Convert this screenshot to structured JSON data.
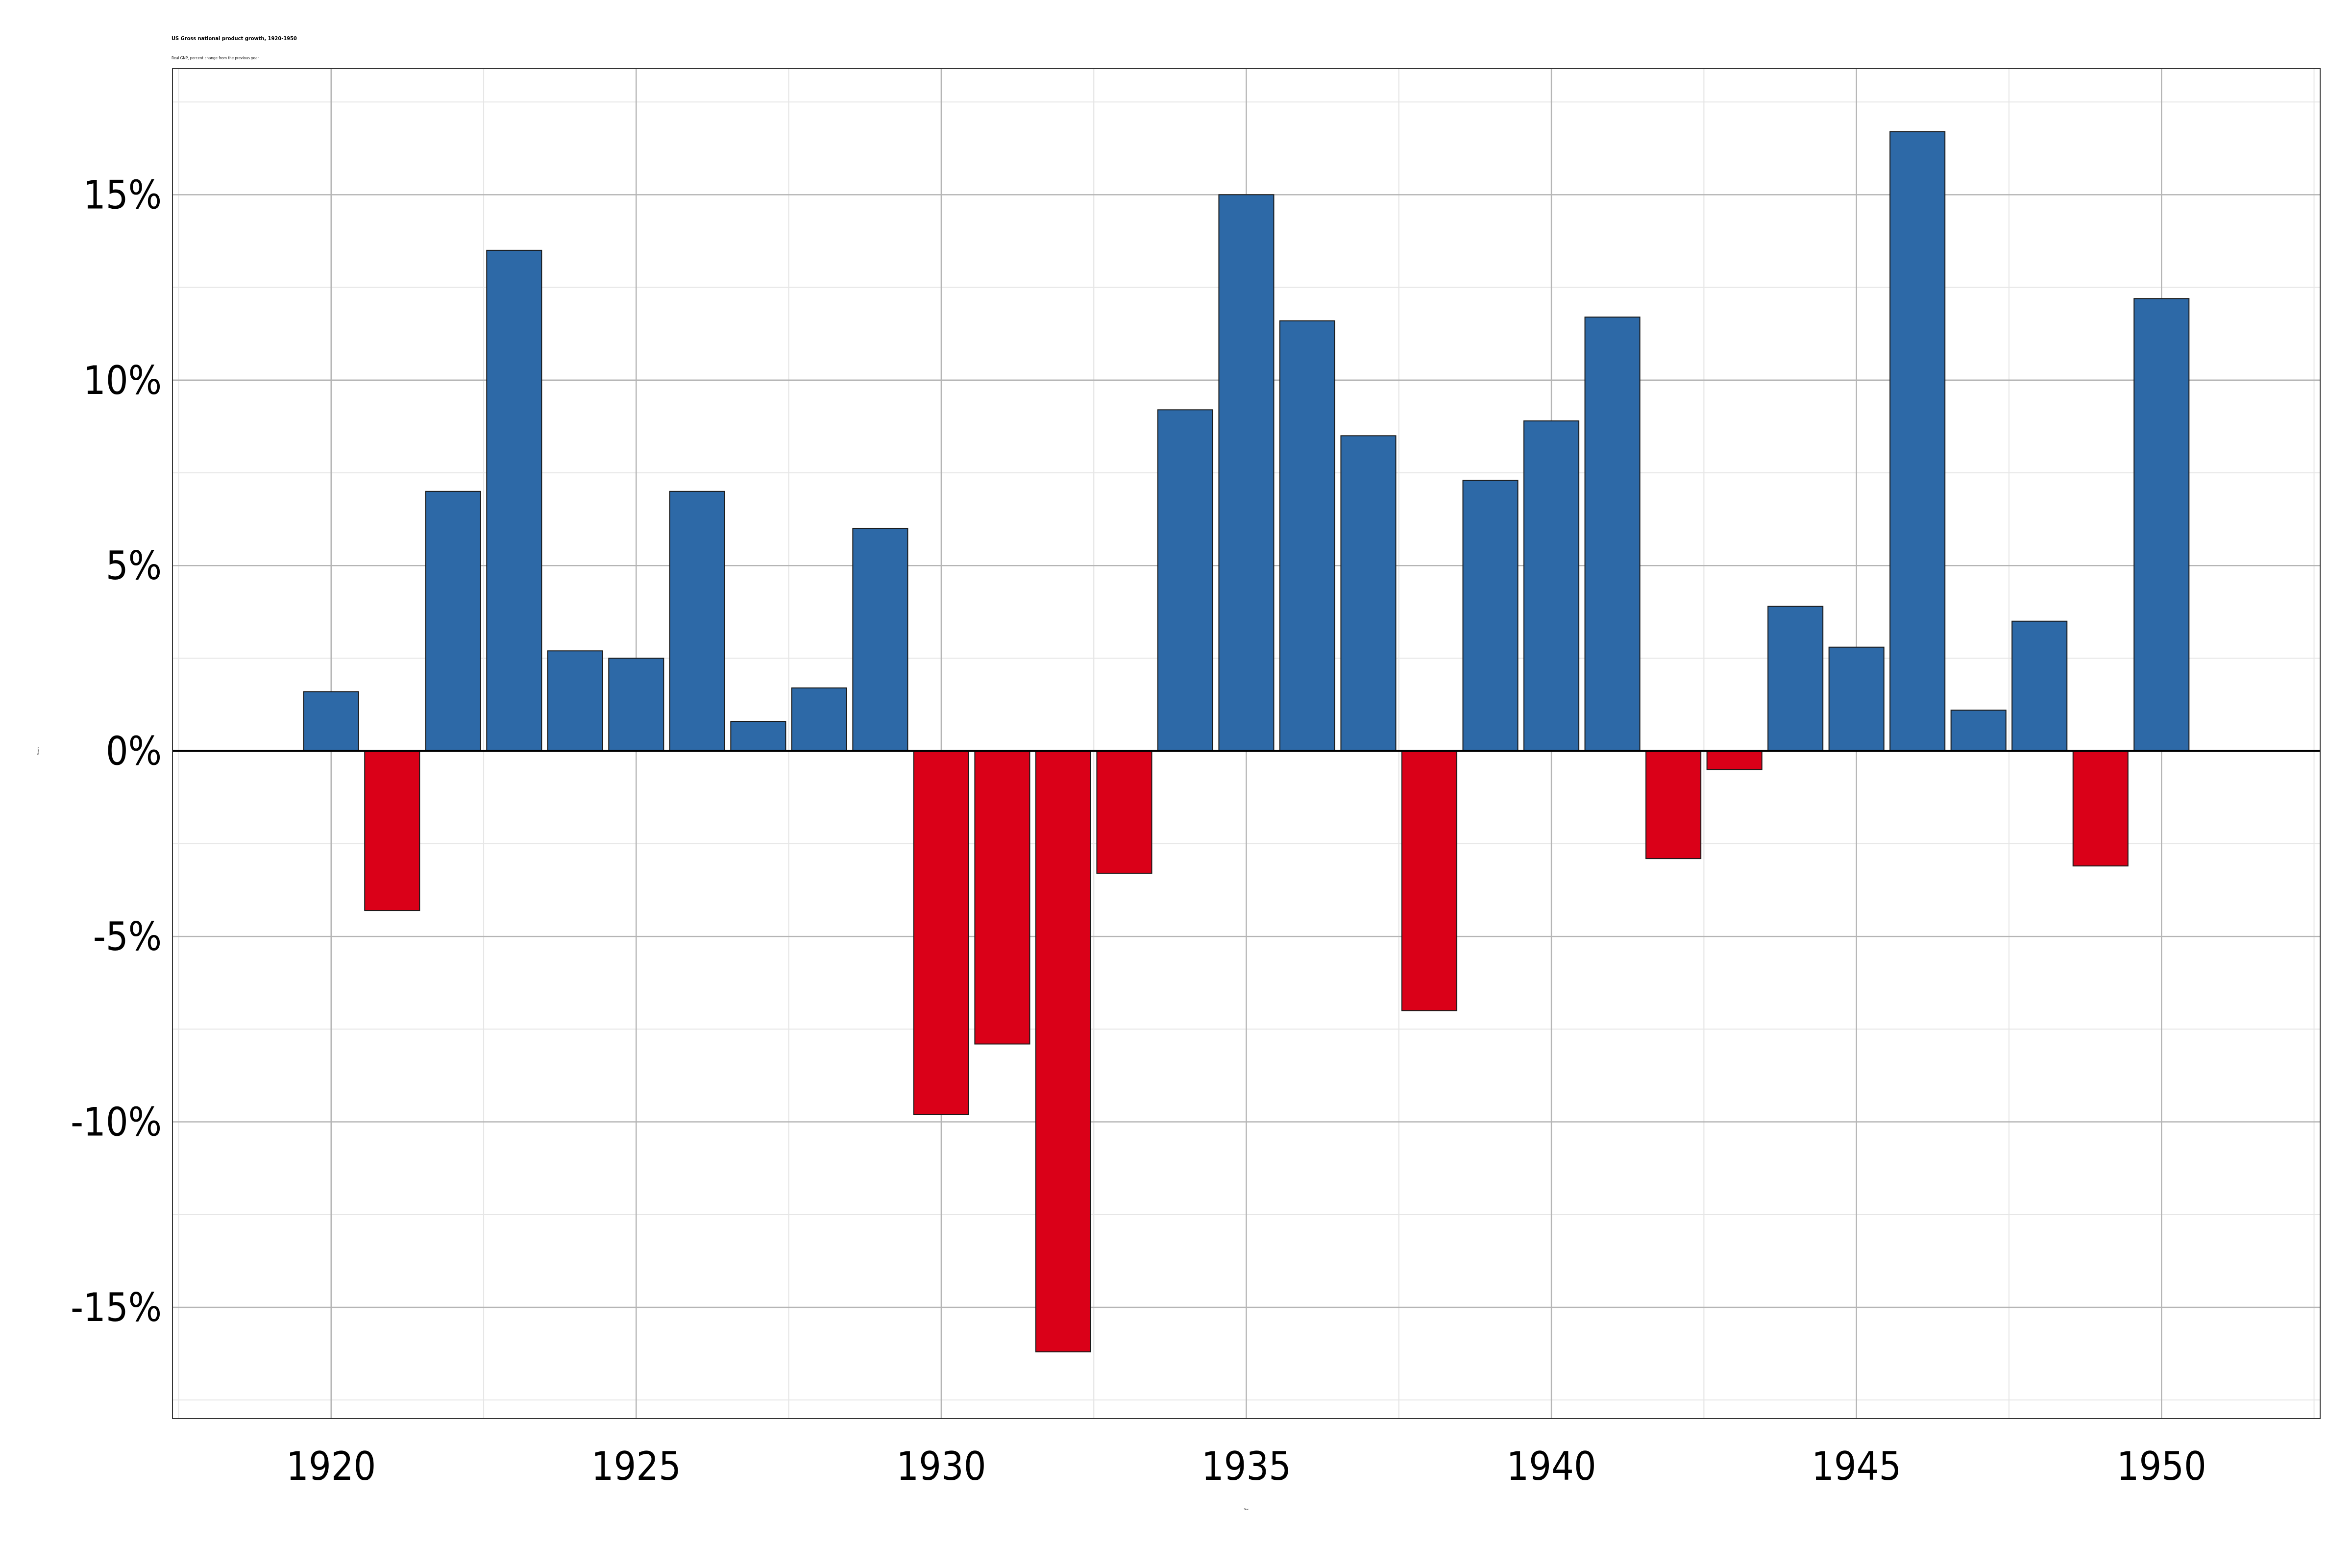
{
  "chart_data": {
    "type": "bar",
    "title": "US Gross national product growth, 1920-1950",
    "subtitle": "Real GNP, percent change from the previous year",
    "caption": "",
    "xlabel": "Year",
    "ylabel": "Growth",
    "xlim": [
      1917.4,
      1952.6
    ],
    "ylim": [
      -18,
      18.4
    ],
    "x_ticks": [
      1920,
      1925,
      1930,
      1935,
      1940,
      1945,
      1950
    ],
    "y_ticks": [
      -15,
      -10,
      -5,
      0,
      5,
      10,
      15
    ],
    "y_tick_format": "percent",
    "grid": true,
    "legend": "none",
    "colors": {
      "positive": "#2d69a7",
      "negative": "#da0018",
      "bar_edge": "#1a1a1a"
    },
    "series": [
      {
        "x": [
          1920,
          1921,
          1922,
          1923,
          1924,
          1925,
          1926,
          1927,
          1928,
          1929,
          1930,
          1931,
          1932,
          1933,
          1934,
          1935,
          1936,
          1937,
          1938,
          1939,
          1940,
          1941,
          1942,
          1943,
          1944,
          1945,
          1946,
          1947,
          1948,
          1949,
          1950
        ],
        "values": [
          1.6,
          -4.3,
          7.0,
          13.5,
          2.7,
          2.5,
          7.0,
          0.8,
          1.7,
          6.0,
          -9.8,
          -7.9,
          -16.2,
          -3.3,
          9.2,
          15.0,
          11.6,
          8.5,
          -7.0,
          7.3,
          8.9,
          11.7,
          -2.9,
          -0.5,
          3.9,
          2.8,
          16.7,
          1.1,
          3.5,
          -3.1,
          12.2
        ]
      }
    ]
  }
}
